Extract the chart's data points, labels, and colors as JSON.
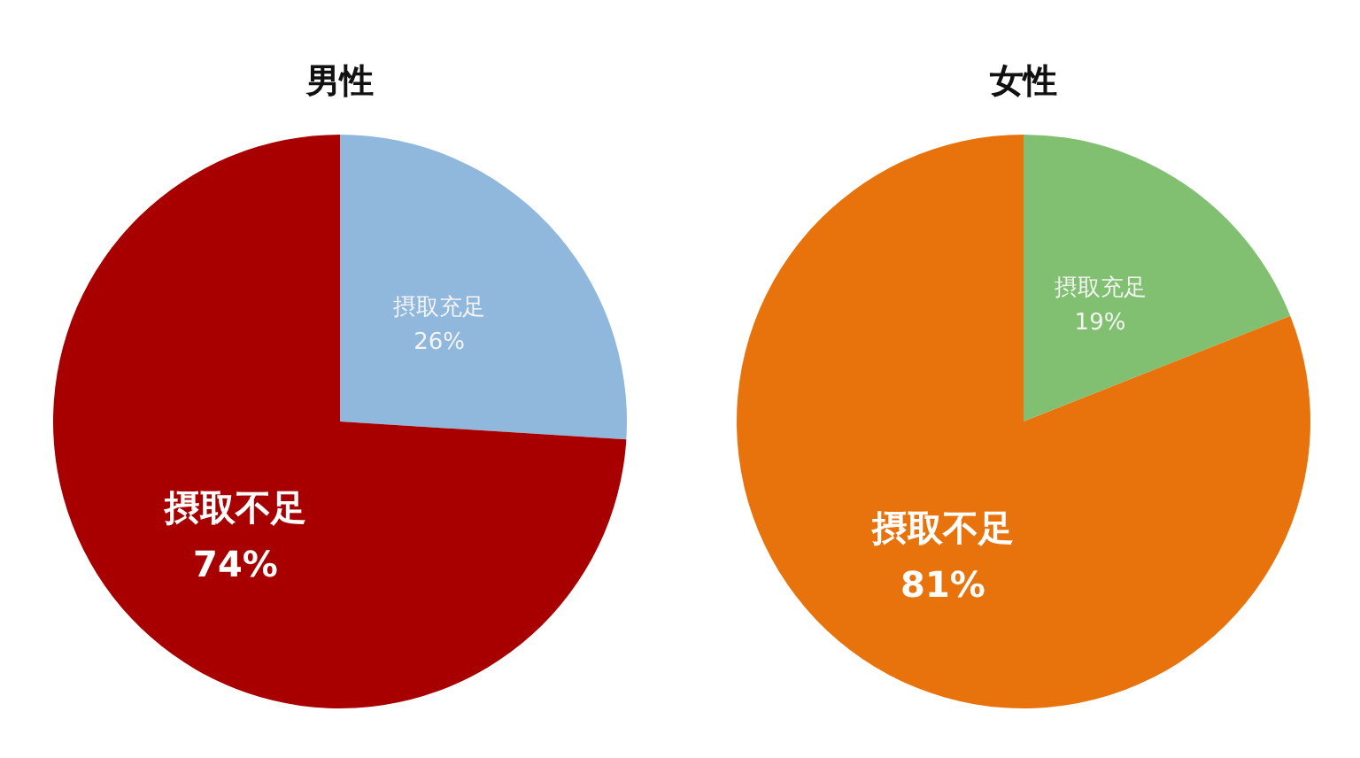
{
  "chart_data": [
    {
      "type": "pie",
      "title": "男性",
      "categories": [
        "摂取充足",
        "摂取不足"
      ],
      "values": [
        26,
        74
      ],
      "value_labels": [
        "26%",
        "74%"
      ],
      "colors": [
        "#8fb8dc",
        "#a80000"
      ]
    },
    {
      "type": "pie",
      "title": "女性",
      "categories": [
        "摂取充足",
        "摂取不足"
      ],
      "values": [
        19,
        81
      ],
      "value_labels": [
        "19%",
        "81%"
      ],
      "colors": [
        "#80c070",
        "#e8720c"
      ]
    }
  ]
}
